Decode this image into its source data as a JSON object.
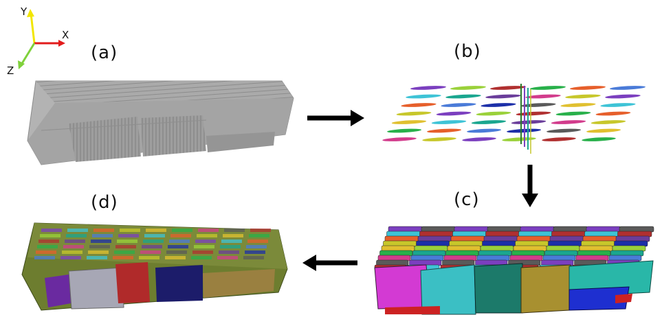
{
  "axes": {
    "x_label": "X",
    "y_label": "Y",
    "z_label": "Z",
    "x_color": "#e21b1b",
    "y_color": "#f2e600",
    "z_color": "#7fd13b"
  },
  "panels": {
    "a": {
      "label": "(a)"
    },
    "b": {
      "label": "(b)"
    },
    "c": {
      "label": "(c)"
    },
    "d": {
      "label": "(d)"
    }
  },
  "colors": {
    "grey_surface": "#a9a9a9",
    "arrow": "#000000",
    "fiber_palette": [
      "#7b3fbf",
      "#28b04a",
      "#1c2fa8",
      "#3ec3d6",
      "#d23c8c",
      "#9ad13a",
      "#e65f2b",
      "#5a5a5a",
      "#1aa68f",
      "#c7c72b",
      "#b03030",
      "#4a7bd8",
      "#e0c030",
      "#6a3d9a"
    ]
  },
  "flow_arrows": [
    "a-to-b",
    "b-to-c",
    "c-to-d"
  ]
}
